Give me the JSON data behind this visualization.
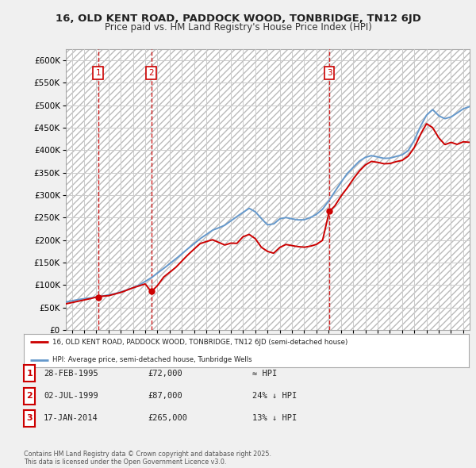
{
  "title": "16, OLD KENT ROAD, PADDOCK WOOD, TONBRIDGE, TN12 6JD",
  "subtitle": "Price paid vs. HM Land Registry's House Price Index (HPI)",
  "ylim": [
    0,
    625000
  ],
  "yticks": [
    0,
    50000,
    100000,
    150000,
    200000,
    250000,
    300000,
    350000,
    400000,
    450000,
    500000,
    550000,
    600000
  ],
  "xlim_start": 1992.5,
  "xlim_end": 2025.5,
  "sale_dates": [
    1995.163,
    1999.497,
    2014.046
  ],
  "sale_prices": [
    72000,
    87000,
    265000
  ],
  "sale_labels": [
    "1",
    "2",
    "3"
  ],
  "legend_entries": [
    "16, OLD KENT ROAD, PADDOCK WOOD, TONBRIDGE, TN12 6JD (semi-detached house)",
    "HPI: Average price, semi-detached house, Tunbridge Wells"
  ],
  "table_rows": [
    [
      "1",
      "28-FEB-1995",
      "£72,000",
      "≈ HPI"
    ],
    [
      "2",
      "02-JUL-1999",
      "£87,000",
      "24% ↓ HPI"
    ],
    [
      "3",
      "17-JAN-2014",
      "£265,000",
      "13% ↓ HPI"
    ]
  ],
  "footer": "Contains HM Land Registry data © Crown copyright and database right 2025.\nThis data is licensed under the Open Government Licence v3.0.",
  "line_color_sold": "#cc0000",
  "line_color_hpi": "#6699cc",
  "bg_color": "#f0f0f0",
  "plot_bg_color": "#ffffff",
  "grid_color": "#cccccc"
}
